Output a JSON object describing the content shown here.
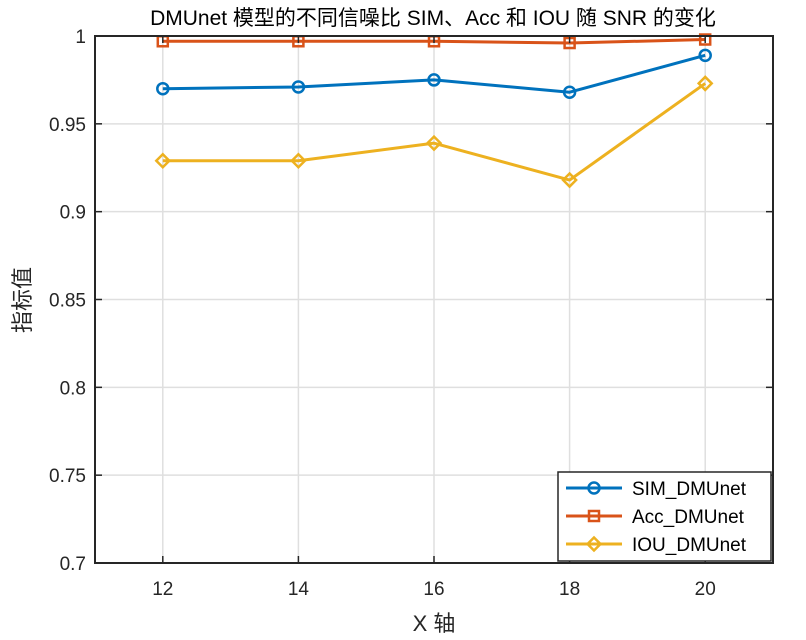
{
  "chart_data": {
    "type": "line",
    "title": "DMUnet 模型的不同信噪比 SIM、Acc 和 IOU 随 SNR 的变化",
    "xlabel": "X 轴",
    "ylabel": "指标值",
    "x": [
      12,
      14,
      16,
      18,
      20
    ],
    "xlim": [
      11,
      21
    ],
    "ylim": [
      0.7,
      1.0
    ],
    "xticks": [
      "12",
      "14",
      "16",
      "18",
      "20"
    ],
    "yticks": [
      "0.7",
      "0.75",
      "0.8",
      "0.85",
      "0.9",
      "0.95",
      "1"
    ],
    "grid": true,
    "legend_position": "bottom-right",
    "series": [
      {
        "name": "SIM_DMUnet",
        "values": [
          0.97,
          0.971,
          0.975,
          0.968,
          0.989
        ],
        "color": "#0072BD",
        "marker": "circle"
      },
      {
        "name": "Acc_DMUnet",
        "values": [
          0.997,
          0.997,
          0.997,
          0.996,
          0.998
        ],
        "color": "#D95319",
        "marker": "square"
      },
      {
        "name": "IOU_DMUnet",
        "values": [
          0.929,
          0.929,
          0.939,
          0.918,
          0.973
        ],
        "color": "#EDB120",
        "marker": "diamond"
      }
    ]
  }
}
